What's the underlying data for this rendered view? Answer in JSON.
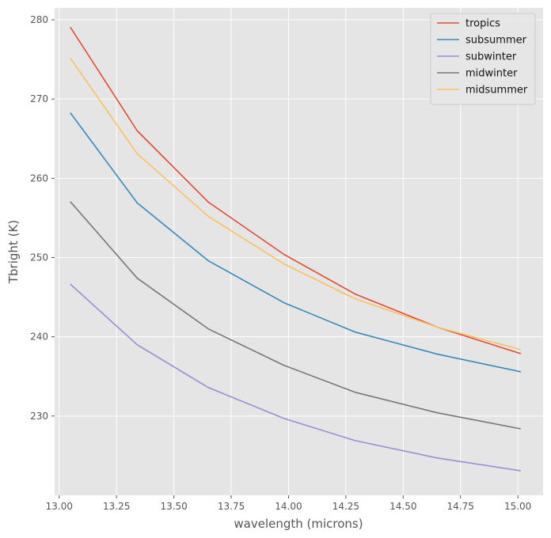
{
  "chart_data": {
    "type": "line",
    "title": "",
    "xlabel": "wavelength (microns)",
    "ylabel": "Tbright (K)",
    "xlim": [
      12.98,
      15.11
    ],
    "ylim": [
      220.0,
      281.5
    ],
    "grid": true,
    "legend_position": "top-right",
    "x_ticks": [
      13.0,
      13.25,
      13.5,
      13.75,
      14.0,
      14.25,
      14.5,
      14.75,
      15.0
    ],
    "x_tick_labels": [
      "13.00",
      "13.25",
      "13.50",
      "13.75",
      "14.00",
      "14.25",
      "14.50",
      "14.75",
      "15.00"
    ],
    "y_ticks": [
      230,
      240,
      250,
      260,
      270,
      280
    ],
    "y_tick_labels": [
      "230",
      "240",
      "250",
      "260",
      "270",
      "280"
    ],
    "x": [
      13.05,
      13.34,
      13.65,
      13.98,
      14.29,
      14.65,
      15.01
    ],
    "series": [
      {
        "name": "tropics",
        "color": "#E24A33",
        "values": [
          279.0,
          266.0,
          257.0,
          250.4,
          245.4,
          241.2,
          237.9
        ]
      },
      {
        "name": "subsummer",
        "color": "#348ABD",
        "values": [
          268.2,
          256.9,
          249.6,
          244.3,
          240.6,
          237.8,
          235.6
        ]
      },
      {
        "name": "subwinter",
        "color": "#988ED5",
        "values": [
          246.6,
          239.0,
          233.6,
          229.7,
          226.9,
          224.7,
          223.1
        ]
      },
      {
        "name": "midwinter",
        "color": "#777777",
        "values": [
          257.0,
          247.4,
          241.0,
          236.4,
          233.0,
          230.4,
          228.4
        ]
      },
      {
        "name": "midsummer",
        "color": "#FBC15E",
        "values": [
          275.1,
          263.1,
          255.2,
          249.2,
          244.8,
          241.2,
          238.4
        ]
      }
    ]
  },
  "colors": {
    "plot_background": "#E5E5E5",
    "grid": "#FFFFFF",
    "text": "#555555"
  }
}
